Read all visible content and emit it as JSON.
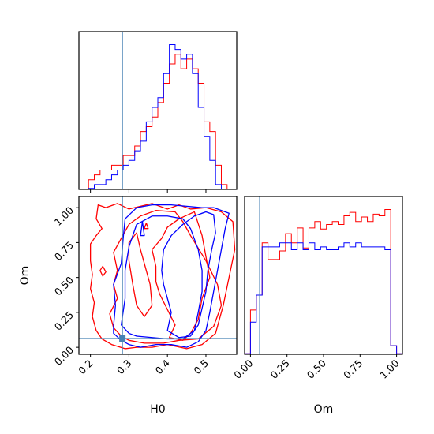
{
  "chart_data": {
    "type": "corner",
    "parameters": [
      "H0",
      "Om"
    ],
    "truths": {
      "H0": 0.283,
      "Om": 0.063
    },
    "colors": {
      "red": "#ff0000",
      "blue": "#0000ff",
      "truth": "#4682b4"
    },
    "panels": [
      {
        "id": "hist-H0",
        "type": "histogram",
        "xlabel": "",
        "xlim": [
          0.17,
          0.58
        ],
        "bin_edges": [
          0.195,
          0.21,
          0.225,
          0.24,
          0.255,
          0.27,
          0.285,
          0.3,
          0.315,
          0.33,
          0.345,
          0.36,
          0.375,
          0.39,
          0.405,
          0.42,
          0.435,
          0.45,
          0.465,
          0.48,
          0.495,
          0.51,
          0.525,
          0.54,
          0.555
        ],
        "series": [
          {
            "color": "red",
            "values": [
              2,
              3,
              4,
              4,
              5,
              5,
              7,
              7,
              9,
              12,
              13,
              15,
              18,
              22,
              26,
              28,
              25,
              27,
              25,
              22,
              14,
              12,
              5,
              1
            ]
          },
          {
            "color": "blue",
            "values": [
              0.2,
              1,
              1,
              2,
              3,
              4,
              5,
              6,
              8,
              10,
              14,
              17,
              19,
              24,
              30,
              29,
              27,
              28,
              24,
              17,
              11,
              6,
              1,
              0
            ]
          }
        ]
      },
      {
        "id": "hist-Om",
        "type": "histogram",
        "xlabel": "Om",
        "xlim": [
          -0.04,
          1.04
        ],
        "xticks": [
          "0.00",
          "0.25",
          "0.50",
          "0.75",
          "1.00"
        ],
        "bin_edges": [
          -0.04,
          0.0,
          0.04,
          0.08,
          0.12,
          0.16,
          0.2,
          0.24,
          0.28,
          0.32,
          0.36,
          0.4,
          0.44,
          0.48,
          0.52,
          0.56,
          0.6,
          0.64,
          0.68,
          0.72,
          0.76,
          0.8,
          0.84,
          0.88,
          0.92,
          0.96,
          1.0,
          1.04
        ],
        "series": [
          {
            "color": "red",
            "values": [
              0.1,
              7.7,
              10.3,
              19.4,
              16.5,
              16.5,
              18.0,
              21.0,
              19.4,
              22.0,
              18.5,
              22.0,
              23.1,
              21.8,
              22.6,
              23.1,
              22.6,
              24.1,
              24.7,
              23.1,
              23.9,
              23.1,
              24.4,
              24.1,
              25.2,
              1.5,
              0.1
            ]
          },
          {
            "color": "blue",
            "values": [
              0.1,
              5.6,
              10.3,
              18.7,
              18.7,
              18.7,
              19.4,
              19.4,
              18.2,
              19.4,
              18.2,
              19.4,
              18.2,
              18.7,
              18.2,
              18.2,
              18.7,
              19.4,
              18.7,
              19.4,
              18.7,
              18.7,
              18.7,
              18.7,
              18.2,
              1.5,
              0.1
            ]
          }
        ]
      },
      {
        "id": "contour-H0-Om",
        "type": "contour2d",
        "xlabel": "H0",
        "ylabel": "Om",
        "xlim": [
          0.17,
          0.58
        ],
        "ylim": [
          -0.05,
          1.08
        ],
        "xticks": [
          "0.2",
          "0.3",
          "0.4",
          "0.5"
        ],
        "yticks": [
          "0.00",
          "0.25",
          "0.50",
          "0.75",
          "1.00"
        ],
        "contours": [
          {
            "color": "red",
            "points": [
              [
                0.215,
                0.92
              ],
              [
                0.22,
                1.02
              ],
              [
                0.24,
                1.0
              ],
              [
                0.27,
                1.03
              ],
              [
                0.3,
                0.99
              ],
              [
                0.33,
                1.01
              ],
              [
                0.36,
                1.03
              ],
              [
                0.4,
                0.99
              ],
              [
                0.43,
                1.02
              ],
              [
                0.46,
                0.99
              ],
              [
                0.5,
                1.0
              ],
              [
                0.54,
                0.97
              ],
              [
                0.57,
                0.9
              ],
              [
                0.575,
                0.7
              ],
              [
                0.56,
                0.5
              ],
              [
                0.545,
                0.3
              ],
              [
                0.525,
                0.1
              ],
              [
                0.49,
                0.02
              ],
              [
                0.45,
                -0.01
              ],
              [
                0.4,
                0.02
              ],
              [
                0.36,
                0.0
              ],
              [
                0.32,
                0.0
              ],
              [
                0.29,
                -0.01
              ],
              [
                0.255,
                0.02
              ],
              [
                0.23,
                0.06
              ],
              [
                0.215,
                0.12
              ],
              [
                0.205,
                0.22
              ],
              [
                0.21,
                0.32
              ],
              [
                0.2,
                0.42
              ],
              [
                0.205,
                0.52
              ],
              [
                0.2,
                0.62
              ],
              [
                0.2,
                0.74
              ],
              [
                0.215,
                0.8
              ],
              [
                0.23,
                0.85
              ],
              [
                0.215,
                0.92
              ]
            ]
          },
          {
            "color": "red",
            "points": [
              [
                0.25,
                0.24
              ],
              [
                0.27,
                0.35
              ],
              [
                0.26,
                0.45
              ],
              [
                0.27,
                0.55
              ],
              [
                0.26,
                0.68
              ],
              [
                0.28,
                0.78
              ],
              [
                0.3,
                0.88
              ],
              [
                0.33,
                0.94
              ],
              [
                0.37,
                0.98
              ],
              [
                0.42,
                0.97
              ],
              [
                0.44,
                0.9
              ],
              [
                0.46,
                0.8
              ],
              [
                0.5,
                0.62
              ],
              [
                0.53,
                0.45
              ],
              [
                0.54,
                0.3
              ],
              [
                0.52,
                0.15
              ],
              [
                0.48,
                0.06
              ],
              [
                0.43,
                0.05
              ],
              [
                0.39,
                0.03
              ],
              [
                0.34,
                0.03
              ],
              [
                0.3,
                0.05
              ],
              [
                0.28,
                0.08
              ],
              [
                0.26,
                0.14
              ],
              [
                0.25,
                0.24
              ]
            ]
          },
          {
            "color": "red",
            "points": [
              [
                0.405,
                0.07
              ],
              [
                0.42,
                0.16
              ],
              [
                0.4,
                0.27
              ],
              [
                0.38,
                0.38
              ],
              [
                0.37,
                0.47
              ],
              [
                0.37,
                0.58
              ],
              [
                0.36,
                0.7
              ],
              [
                0.385,
                0.78
              ],
              [
                0.4,
                0.86
              ],
              [
                0.43,
                0.92
              ],
              [
                0.47,
                0.97
              ],
              [
                0.49,
                0.8
              ],
              [
                0.5,
                0.65
              ],
              [
                0.51,
                0.5
              ],
              [
                0.49,
                0.35
              ],
              [
                0.48,
                0.2
              ],
              [
                0.46,
                0.1
              ],
              [
                0.44,
                0.05
              ],
              [
                0.405,
                0.07
              ]
            ]
          },
          {
            "color": "red",
            "points": [
              [
                0.3,
                0.62
              ],
              [
                0.31,
                0.45
              ],
              [
                0.32,
                0.3
              ],
              [
                0.34,
                0.22
              ],
              [
                0.36,
                0.3
              ],
              [
                0.355,
                0.45
              ],
              [
                0.34,
                0.6
              ],
              [
                0.33,
                0.7
              ],
              [
                0.32,
                0.82
              ],
              [
                0.3,
                0.75
              ],
              [
                0.3,
                0.62
              ]
            ]
          },
          {
            "color": "red",
            "points": [
              [
                0.225,
                0.55
              ],
              [
                0.232,
                0.58
              ],
              [
                0.24,
                0.54
              ],
              [
                0.232,
                0.51
              ],
              [
                0.225,
                0.55
              ]
            ]
          },
          {
            "color": "red",
            "points": [
              [
                0.34,
                0.85
              ],
              [
                0.345,
                0.89
              ],
              [
                0.35,
                0.85
              ],
              [
                0.34,
                0.85
              ]
            ]
          },
          {
            "color": "blue",
            "points": [
              [
                0.26,
                0.15
              ],
              [
                0.265,
                0.3
              ],
              [
                0.26,
                0.45
              ],
              [
                0.28,
                0.6
              ],
              [
                0.285,
                0.78
              ],
              [
                0.29,
                0.92
              ],
              [
                0.32,
                1.0
              ],
              [
                0.36,
                1.02
              ],
              [
                0.41,
                1.02
              ],
              [
                0.45,
                1.01
              ],
              [
                0.49,
                1.0
              ],
              [
                0.52,
                1.0
              ],
              [
                0.56,
                0.96
              ],
              [
                0.55,
                0.85
              ],
              [
                0.54,
                0.7
              ],
              [
                0.53,
                0.55
              ],
              [
                0.52,
                0.4
              ],
              [
                0.51,
                0.25
              ],
              [
                0.5,
                0.12
              ],
              [
                0.48,
                0.04
              ],
              [
                0.45,
                0.0
              ],
              [
                0.41,
                0.02
              ],
              [
                0.37,
                0.02
              ],
              [
                0.33,
                0.0
              ],
              [
                0.3,
                0.02
              ],
              [
                0.28,
                0.05
              ],
              [
                0.26,
                0.1
              ],
              [
                0.26,
                0.15
              ]
            ]
          },
          {
            "color": "blue",
            "points": [
              [
                0.28,
                0.16
              ],
              [
                0.29,
                0.35
              ],
              [
                0.29,
                0.55
              ],
              [
                0.3,
                0.72
              ],
              [
                0.32,
                0.88
              ],
              [
                0.36,
                0.94
              ],
              [
                0.4,
                0.94
              ],
              [
                0.44,
                0.92
              ],
              [
                0.46,
                0.85
              ],
              [
                0.48,
                0.7
              ],
              [
                0.49,
                0.55
              ],
              [
                0.49,
                0.4
              ],
              [
                0.48,
                0.25
              ],
              [
                0.47,
                0.12
              ],
              [
                0.44,
                0.06
              ],
              [
                0.4,
                0.06
              ],
              [
                0.36,
                0.07
              ],
              [
                0.32,
                0.08
              ],
              [
                0.3,
                0.1
              ],
              [
                0.28,
                0.16
              ]
            ]
          },
          {
            "color": "blue",
            "points": [
              [
                0.4,
                0.12
              ],
              [
                0.41,
                0.25
              ],
              [
                0.4,
                0.35
              ],
              [
                0.39,
                0.45
              ],
              [
                0.385,
                0.55
              ],
              [
                0.39,
                0.7
              ],
              [
                0.41,
                0.8
              ],
              [
                0.44,
                0.88
              ],
              [
                0.47,
                0.94
              ],
              [
                0.5,
                0.97
              ],
              [
                0.52,
                0.95
              ],
              [
                0.525,
                0.82
              ],
              [
                0.515,
                0.7
              ],
              [
                0.505,
                0.55
              ],
              [
                0.5,
                0.4
              ],
              [
                0.49,
                0.28
              ],
              [
                0.48,
                0.16
              ],
              [
                0.46,
                0.08
              ],
              [
                0.43,
                0.07
              ],
              [
                0.4,
                0.12
              ]
            ]
          },
          {
            "color": "blue",
            "points": [
              [
                0.33,
                0.8
              ],
              [
                0.335,
                0.9
              ],
              [
                0.34,
                0.8
              ],
              [
                0.33,
                0.8
              ]
            ]
          }
        ]
      }
    ]
  }
}
